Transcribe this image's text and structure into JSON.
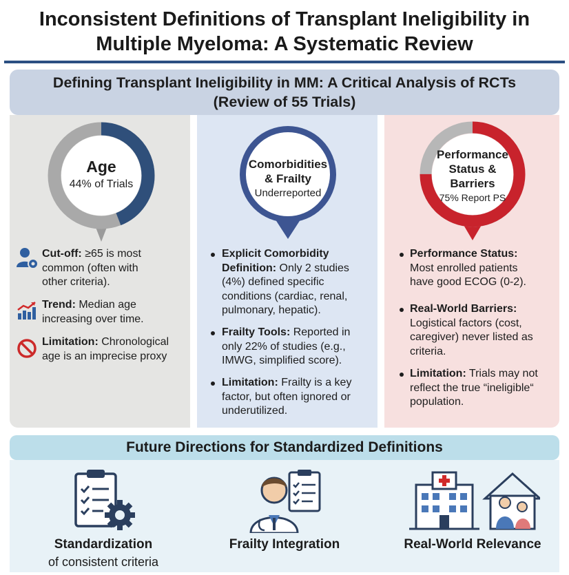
{
  "title": {
    "line1": "Inconsistent Definitions of Transplant Ineligibility in",
    "line2": "Multiple Myeloma: A Systematic Review"
  },
  "banner": {
    "line1": "Defining Transplant Ineligibility in MM: A Critical Analysis of RCTs",
    "line2": "(Review of 55 Trials)"
  },
  "columns": {
    "age": {
      "pin_title": "Age",
      "pin_subtitle": "44% of Trials",
      "pin_fraction": 0.44,
      "items": [
        {
          "icon": "user-gear-icon",
          "label": "Cut-off:",
          "lines": [
            " ≥65 is most",
            "common (often with",
            "other criteria)."
          ]
        },
        {
          "icon": "bar-chart-trend-icon",
          "label": "Trend:",
          "lines": [
            " Median age",
            "increasing over time."
          ]
        },
        {
          "icon": "prohibited-icon",
          "label": "Limitation:",
          "lines": [
            " Chronological",
            "age is an imprecise proxy"
          ]
        }
      ]
    },
    "comorbidities": {
      "pin_title_1": "Comorbidities",
      "pin_title_2": "& Frailty",
      "pin_subtitle": "Underreported",
      "items": [
        {
          "label": "Explicit Comorbidity",
          "lines": [
            "Definition:",
            " Only 2 studies",
            "(4%) defined specific",
            "conditions (cardiac, renal,",
            "pulmonary, hepatic)."
          ]
        },
        {
          "label": "Frailty Tools:",
          "lines": [
            " Reported in",
            "only 22% of studies (e.g.,",
            "IMWG, simplified score)."
          ]
        },
        {
          "label": "Limitation:",
          "lines": [
            " Frailty is a key",
            "factor, but often ignored or",
            "underutilized."
          ]
        }
      ]
    },
    "performance": {
      "pin_title_1": "Performance",
      "pin_title_2": "Status &",
      "pin_title_3": "Barriers",
      "pin_subtitle": "75% Report PS",
      "pin_fraction": 0.75,
      "items": [
        {
          "label": "Performance Status:",
          "lines": [
            "Most enrolled patients",
            "have good ECOG (0-2)."
          ]
        },
        {
          "label": "Real-World Barriers:",
          "lines": [
            "Logistical factors (cost,",
            "caregiver) never listed as",
            "criteria."
          ]
        },
        {
          "label": "Limitation:",
          "lines": [
            " Trials may not",
            "reflect the true “ineligible“",
            "population."
          ]
        }
      ]
    }
  },
  "future": {
    "heading": "Future Directions for Standardized Definitions",
    "items": [
      {
        "icon": "checklist-gear-icon",
        "label": "Standardization",
        "sub": "of consistent criteria"
      },
      {
        "icon": "doctor-clipboard-icon",
        "label": "Frailty Integration",
        "sub": ""
      },
      {
        "icon": "hospital-home-icon",
        "label": "Real-World Relevance",
        "sub": ""
      }
    ]
  },
  "colors": {
    "title_rule": "#2b4f82",
    "banner_bg": "#c9d3e3",
    "age_bg": "#e5e5e3",
    "comorbidity_bg": "#dde6f3",
    "performance_bg": "#f7e0df",
    "age_accent": "#2f4f7a",
    "comorbidity_accent": "#3d5592",
    "performance_accent": "#c8232c",
    "future_banner_bg": "#bcdeea",
    "future_bg": "#e8f2f7"
  }
}
